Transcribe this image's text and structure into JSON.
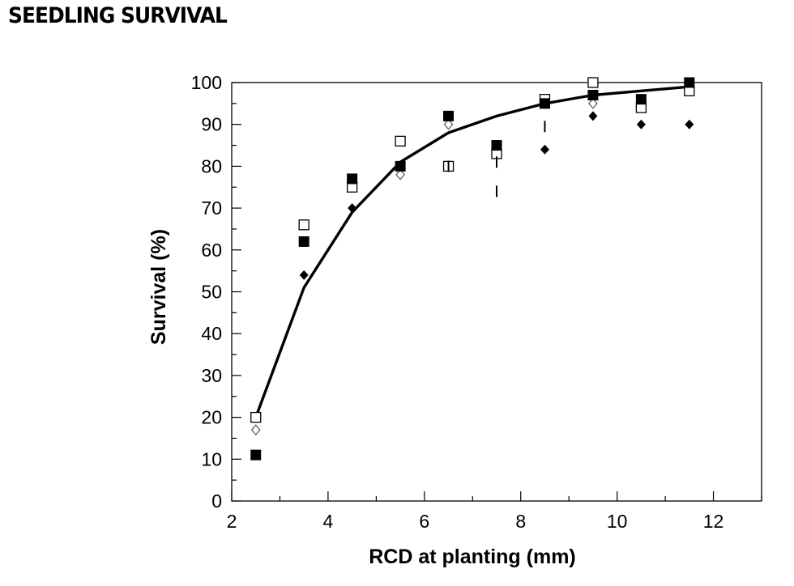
{
  "header": {
    "title": "SEEDLING SURVIVAL"
  },
  "chart_data": {
    "type": "scatter",
    "title": "",
    "xlabel": "RCD at planting (mm)",
    "ylabel": "Survival (%)",
    "xlim": [
      2,
      13
    ],
    "ylim": [
      0,
      100
    ],
    "x_ticks": [
      "2",
      "4",
      "6",
      "8",
      "10",
      "12"
    ],
    "y_ticks": [
      "0",
      "10",
      "20",
      "30",
      "40",
      "50",
      "60",
      "70",
      "80",
      "90",
      "100"
    ],
    "grid": false,
    "legend": "none",
    "series": [
      {
        "marker": "filled-square",
        "x": [
          2.5,
          3.5,
          4.5,
          5.5,
          6.5,
          7.5,
          8.5,
          9.5,
          10.5,
          11.5
        ],
        "y": [
          11,
          62,
          77,
          80,
          92,
          85,
          95,
          97,
          96,
          100
        ]
      },
      {
        "marker": "open-square",
        "x": [
          2.5,
          3.5,
          4.5,
          5.5,
          6.5,
          7.5,
          8.5,
          9.5,
          10.5,
          11.5
        ],
        "y": [
          20,
          66,
          75,
          86,
          80,
          83,
          96,
          100,
          94,
          98
        ]
      },
      {
        "marker": "filled-diamond",
        "x": [
          3.5,
          4.5,
          8.5,
          9.5,
          10.5,
          11.5
        ],
        "y": [
          54,
          70,
          84,
          92,
          90,
          90
        ]
      },
      {
        "marker": "open-diamond",
        "x": [
          2.5,
          5.5,
          6.5,
          9.5
        ],
        "y": [
          17,
          78,
          90,
          95
        ]
      },
      {
        "marker": "dash",
        "x": [
          6.5,
          7.5,
          7.5,
          8.5
        ],
        "y": [
          80,
          81,
          74,
          89.5
        ]
      }
    ],
    "fit_line": {
      "type": "line",
      "x": [
        2.5,
        3.5,
        4.5,
        5.5,
        6.5,
        7.5,
        8.5,
        9.5,
        10.5,
        11.5
      ],
      "y": [
        20,
        51,
        69,
        81,
        88,
        92,
        95,
        97,
        98,
        99
      ]
    },
    "colors": {
      "ink": "#000000",
      "open_fill": "#ffffff"
    }
  }
}
